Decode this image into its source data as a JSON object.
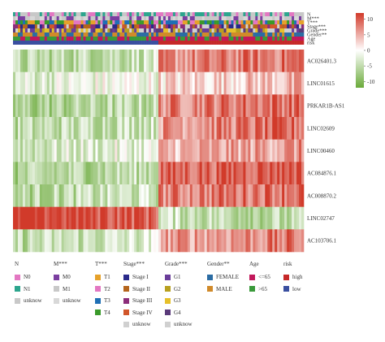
{
  "chart_data": {
    "type": "heatmap",
    "annotation_tracks": [
      "N",
      "M***",
      "T***",
      "Stage***",
      "Grade***",
      "Gender**",
      "Age",
      "risk"
    ],
    "rows": [
      "AC026401.3",
      "LINC01615",
      "PRKAR1B-AS1",
      "LINC02609",
      "LINC00460",
      "AC084876.1",
      "AC008870.2",
      "LINC02747",
      "AC103706.1"
    ],
    "colorbar": {
      "ticks": [
        10,
        5,
        0,
        -5,
        -10
      ],
      "range": [
        -12,
        12
      ],
      "low_color": "#6aaa3a",
      "mid_color": "#ffffff",
      "high_color": "#d13a2a"
    },
    "risk_split_fraction": 0.5,
    "row_pattern": {
      "AC026401.3": {
        "low_side": 0.9,
        "high_side": -1.6
      },
      "LINC01615": {
        "low_side": 0.1,
        "high_side": -0.5
      },
      "PRKAR1B-AS1": {
        "low_side": 1.2,
        "high_side": -1.8
      },
      "LINC02609": {
        "low_side": 0.8,
        "high_side": -1.6
      },
      "LINC00460": {
        "low_side": 0.4,
        "high_side": -1.0
      },
      "AC084876.1": {
        "low_side": 1.1,
        "high_side": -2.2
      },
      "AC008870.2": {
        "low_side": 0.9,
        "high_side": -1.8
      },
      "LINC02747": {
        "low_side": -2.5,
        "high_side": 0.9
      },
      "AC103706.1": {
        "low_side": 0.7,
        "high_side": -1.4
      }
    }
  },
  "legend": [
    {
      "title": "N",
      "items": [
        {
          "label": "N0",
          "color": "#e377c2"
        },
        {
          "label": "N1",
          "color": "#2ca58d"
        },
        {
          "label": "unknow",
          "color": "#c8c8c8"
        }
      ]
    },
    {
      "title": "M***",
      "items": [
        {
          "label": "M0",
          "color": "#7b3fa0"
        },
        {
          "label": "M1",
          "color": "#c8c8c8"
        },
        {
          "label": "unknow",
          "color": "#d8d8d8"
        }
      ]
    },
    {
      "title": "T***",
      "items": [
        {
          "label": "T1",
          "color": "#e6a12a"
        },
        {
          "label": "T2",
          "color": "#e377c2"
        },
        {
          "label": "T3",
          "color": "#1f6fb5"
        },
        {
          "label": "T4",
          "color": "#3a9a2a"
        }
      ]
    },
    {
      "title": "Stage***",
      "items": [
        {
          "label": "Stage I",
          "color": "#2a2a8a"
        },
        {
          "label": "Stage II",
          "color": "#b5651d"
        },
        {
          "label": "Stage III",
          "color": "#8c2d7a"
        },
        {
          "label": "Stage IV",
          "color": "#d1562a"
        },
        {
          "label": "unknow",
          "color": "#d0d0d0"
        }
      ]
    },
    {
      "title": "Grade***",
      "items": [
        {
          "label": "G1",
          "color": "#6a3d9a"
        },
        {
          "label": "G2",
          "color": "#b8a020"
        },
        {
          "label": "G3",
          "color": "#e6c02a"
        },
        {
          "label": "G4",
          "color": "#5a3a7a"
        },
        {
          "label": "unknow",
          "color": "#d0d0d0"
        }
      ]
    },
    {
      "title": "Gender**",
      "items": [
        {
          "label": "FEMALE",
          "color": "#2b6ca3"
        },
        {
          "label": "MALE",
          "color": "#d08a2a"
        }
      ]
    },
    {
      "title": "Age",
      "items": [
        {
          "label": "<=65",
          "color": "#c2185b"
        },
        {
          "label": ">65",
          "color": "#3a9a3a"
        }
      ]
    },
    {
      "title": "risk",
      "items": [
        {
          "label": "high",
          "color": "#c62828"
        },
        {
          "label": "low",
          "color": "#3a4fa0"
        }
      ]
    }
  ]
}
